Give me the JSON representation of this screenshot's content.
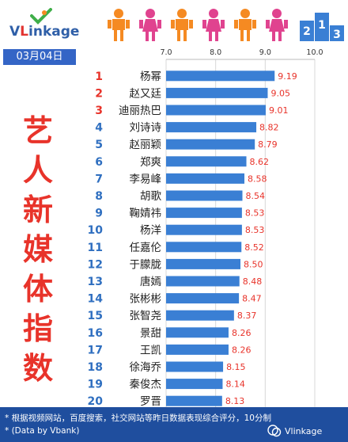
{
  "brand": {
    "logo_text": "VLinkage",
    "podium_numbers": [
      "2",
      "1",
      "3"
    ]
  },
  "date": "03月04日",
  "side_title": [
    "艺",
    "人",
    "新",
    "媒",
    "体",
    "指",
    "数"
  ],
  "colors": {
    "bar": "#3a7fd4",
    "rank": "#e8332a",
    "value": "#e8332a",
    "title": "#e8332a",
    "date_bg": "#3465c6",
    "footer_bg": "#1f4e9e",
    "people": [
      "#f58a22",
      "#e0438f",
      "#f58a22",
      "#e0438f",
      "#f58a22",
      "#e0438f"
    ]
  },
  "chart_data": {
    "type": "bar",
    "orientation": "horizontal",
    "xlim": [
      7.0,
      10.0
    ],
    "xticks": [
      "7.0",
      "8.0",
      "9.0",
      "10.0"
    ],
    "grid": true,
    "categories": [
      "杨幂",
      "赵又廷",
      "迪丽热巴",
      "刘诗诗",
      "赵丽颖",
      "郑爽",
      "李易峰",
      "胡歌",
      "鞠婧祎",
      "杨洋",
      "任嘉伦",
      "于朦胧",
      "唐嫣",
      "张彬彬",
      "张智尧",
      "景甜",
      "王凯",
      "徐海乔",
      "秦俊杰",
      "罗晋"
    ],
    "ranks": [
      "1",
      "2",
      "3",
      "4",
      "5",
      "6",
      "7",
      "8",
      "9",
      "10",
      "11",
      "12",
      "13",
      "14",
      "15",
      "16",
      "17",
      "18",
      "19",
      "20"
    ],
    "values": [
      9.19,
      9.05,
      9.01,
      8.82,
      8.79,
      8.62,
      8.58,
      8.54,
      8.53,
      8.53,
      8.52,
      8.5,
      8.48,
      8.47,
      8.37,
      8.26,
      8.26,
      8.15,
      8.14,
      8.13
    ],
    "value_labels": [
      "9.19",
      "9.05",
      "9.01",
      "8.82",
      "8.79",
      "8.62",
      "8.58",
      "8.54",
      "8.53",
      "8.53",
      "8.52",
      "8.50",
      "8.48",
      "8.47",
      "8.37",
      "8.26",
      "8.26",
      "8.15",
      "8.14",
      "8.13"
    ]
  },
  "footer": {
    "line1": "* 根据视频网站，百度搜索，社交网站等昨日数据表现综合评分，10分制",
    "line2": "* (Data by Vbank)",
    "watermark": "Vlinkage"
  }
}
